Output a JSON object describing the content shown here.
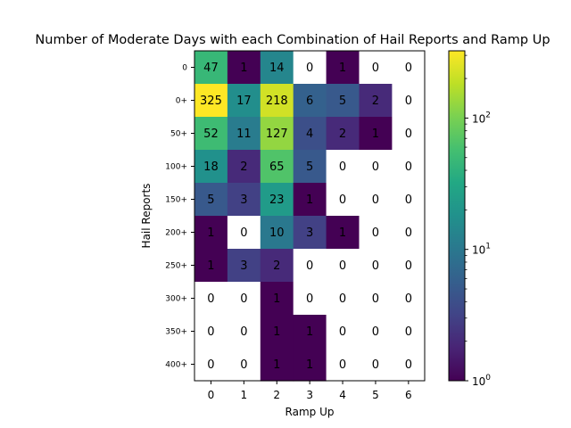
{
  "chart_data": {
    "type": "heatmap",
    "title": "Number of Moderate Days with each Combination of Hail Reports and Ramp Up",
    "xlabel": "Ramp Up",
    "ylabel": "Hail Reports",
    "x_categories": [
      "0",
      "1",
      "2",
      "3",
      "4",
      "5",
      "6"
    ],
    "y_categories": [
      "0",
      "0+",
      "50+",
      "100+",
      "150+",
      "200+",
      "250+",
      "300+",
      "350+",
      "400+"
    ],
    "values": [
      [
        47,
        1,
        14,
        0,
        1,
        0,
        0
      ],
      [
        325,
        17,
        218,
        6,
        5,
        2,
        0
      ],
      [
        52,
        11,
        127,
        4,
        2,
        1,
        0
      ],
      [
        18,
        2,
        65,
        5,
        0,
        0,
        0
      ],
      [
        5,
        3,
        23,
        1,
        0,
        0,
        0
      ],
      [
        1,
        0,
        10,
        3,
        1,
        0,
        0
      ],
      [
        1,
        3,
        2,
        0,
        0,
        0,
        0
      ],
      [
        0,
        0,
        1,
        0,
        0,
        0,
        0
      ],
      [
        0,
        0,
        1,
        1,
        0,
        0,
        0
      ],
      [
        0,
        0,
        1,
        1,
        0,
        0,
        0
      ]
    ],
    "colormap": "viridis",
    "color_scale": "log",
    "colorbar": {
      "range": [
        1,
        325
      ],
      "ticks": [
        {
          "value": 1,
          "base": "10",
          "exp": "0"
        },
        {
          "value": 10,
          "base": "10",
          "exp": "1"
        },
        {
          "value": 100,
          "base": "10",
          "exp": "2"
        }
      ]
    },
    "zero_color": "#ffffff"
  }
}
